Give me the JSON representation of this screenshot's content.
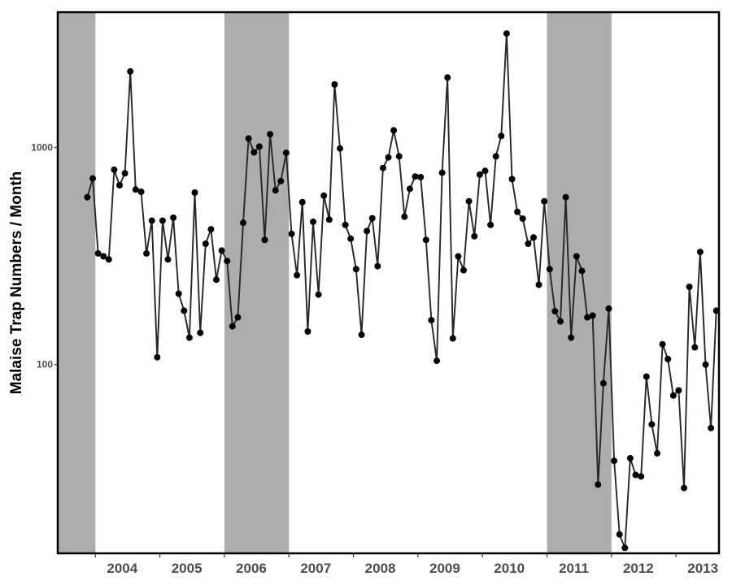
{
  "chart_data": {
    "type": "line",
    "title": "",
    "xlabel": "",
    "ylabel": "Malaise Trap Numbers / Month",
    "y_scale": "log",
    "ylim": [
      13.5,
      4200
    ],
    "y_ticks": [
      100,
      1000
    ],
    "y_tick_labels": [
      "100",
      "1000"
    ],
    "xlim": [
      "2003-06-01",
      "2013-09-01"
    ],
    "x_tick_labels": [
      "2004",
      "2005",
      "2006",
      "2007",
      "2008",
      "2009",
      "2010",
      "2011",
      "2012",
      "2013"
    ],
    "x_tick_dates": [
      "2004-06-01",
      "2005-06-01",
      "2006-06-01",
      "2007-06-01",
      "2008-06-01",
      "2009-06-01",
      "2010-06-01",
      "2011-06-01",
      "2012-06-01",
      "2013-06-01"
    ],
    "x_minor_tick_dates": [
      "2004-01-01",
      "2005-01-01",
      "2006-01-01",
      "2007-01-01",
      "2008-01-01",
      "2009-01-01",
      "2010-01-01",
      "2011-01-01",
      "2012-01-01",
      "2013-01-01"
    ],
    "shaded_periods": [
      {
        "start": "2003-06-01",
        "end": "2004-01-01"
      },
      {
        "start": "2006-01-01",
        "end": "2007-01-01"
      },
      {
        "start": "2011-01-01",
        "end": "2012-01-01"
      }
    ],
    "grid": false,
    "colors": {
      "line": "#262626",
      "point": "#000000",
      "shade": "#adadad",
      "frame": "#000000",
      "tick_label": "#4d4d4d"
    },
    "series": [
      {
        "x": [
          "2003-11",
          "2003-12",
          "2004-01",
          "2004-02",
          "2004-03",
          "2004-04",
          "2004-05",
          "2004-06",
          "2004-07",
          "2004-08",
          "2004-09",
          "2004-10",
          "2004-11",
          "2004-12",
          "2005-01",
          "2005-02",
          "2005-03",
          "2005-04",
          "2005-05",
          "2005-06",
          "2005-07",
          "2005-08",
          "2005-09",
          "2005-10",
          "2005-11",
          "2005-12",
          "2006-01",
          "2006-02",
          "2006-03",
          "2006-04",
          "2006-05",
          "2006-06",
          "2006-07",
          "2006-08",
          "2006-09",
          "2006-10",
          "2006-11",
          "2006-12",
          "2007-01",
          "2007-02",
          "2007-03",
          "2007-04",
          "2007-05",
          "2007-06",
          "2007-07",
          "2007-08",
          "2007-09",
          "2007-10",
          "2007-11",
          "2007-12",
          "2008-01",
          "2008-02",
          "2008-03",
          "2008-04",
          "2008-05",
          "2008-06",
          "2008-07",
          "2008-08",
          "2008-09",
          "2008-10",
          "2008-11",
          "2008-12",
          "2009-01",
          "2009-02",
          "2009-03",
          "2009-04",
          "2009-05",
          "2009-06",
          "2009-07",
          "2009-08",
          "2009-09",
          "2009-10",
          "2009-11",
          "2009-12",
          "2010-01",
          "2010-02",
          "2010-03",
          "2010-04",
          "2010-05",
          "2010-06",
          "2010-07",
          "2010-08",
          "2010-09",
          "2010-10",
          "2010-11",
          "2010-12",
          "2011-01",
          "2011-02",
          "2011-03",
          "2011-04",
          "2011-05",
          "2011-06",
          "2011-07",
          "2011-08",
          "2011-09",
          "2011-10",
          "2011-11",
          "2011-12",
          "2012-01",
          "2012-02",
          "2012-03",
          "2012-04",
          "2012-05",
          "2012-06",
          "2012-07",
          "2012-08",
          "2012-09",
          "2012-10",
          "2012-11",
          "2012-12",
          "2013-01",
          "2013-02",
          "2013-03",
          "2013-04",
          "2013-05",
          "2013-06",
          "2013-07",
          "2013-08"
        ],
        "values": [
          590,
          720,
          325,
          315,
          305,
          790,
          670,
          760,
          2240,
          640,
          625,
          325,
          460,
          108,
          460,
          305,
          475,
          212,
          177,
          133,
          620,
          140,
          360,
          420,
          246,
          335,
          300,
          150,
          165,
          450,
          1100,
          950,
          1010,
          375,
          1150,
          635,
          700,
          945,
          400,
          258,
          560,
          142,
          455,
          210,
          600,
          465,
          1950,
          990,
          440,
          380,
          275,
          137,
          412,
          472,
          284,
          805,
          900,
          1200,
          910,
          480,
          645,
          735,
          730,
          375,
          160,
          104,
          765,
          2100,
          132,
          315,
          272,
          565,
          390,
          750,
          780,
          440,
          910,
          1130,
          3350,
          715,
          505,
          470,
          360,
          385,
          233,
          565,
          275,
          176,
          158,
          590,
          133,
          315,
          270,
          165,
          168,
          28,
          82,
          181,
          36,
          16.5,
          14.3,
          37,
          31,
          30.5,
          88,
          53,
          39,
          124,
          106,
          72,
          76,
          27,
          228,
          120,
          330,
          100,
          51,
          177
        ]
      }
    ]
  }
}
